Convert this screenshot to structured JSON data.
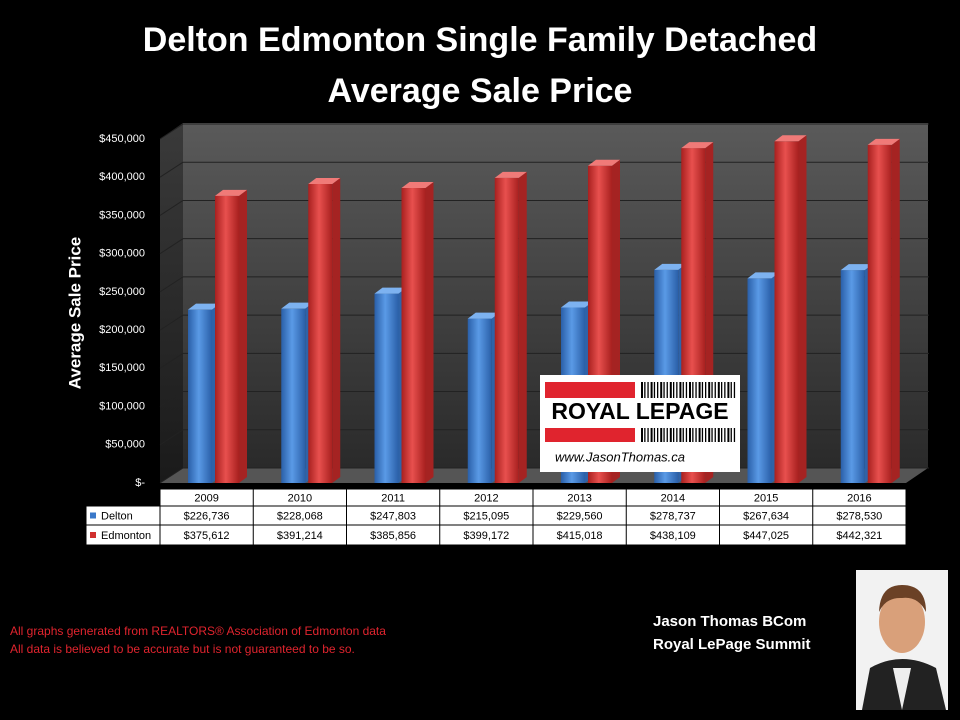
{
  "chart_data": {
    "type": "bar3d",
    "title": [
      "Delton Edmonton Single Family Detached",
      "Average Sale Price"
    ],
    "y_label": "Average Sale Price",
    "categories": [
      "2009",
      "2010",
      "2011",
      "2012",
      "2013",
      "2014",
      "2015",
      "2016"
    ],
    "series": [
      {
        "name": "Delton",
        "color": "#3a78c9",
        "values": [
          226736,
          228068,
          247803,
          215095,
          229560,
          278737,
          267634,
          278530
        ],
        "value_labels": [
          "$226,736",
          "$228,068",
          "$247,803",
          "$215,095",
          "$229,560",
          "$278,737",
          "$267,634",
          "$278,530"
        ]
      },
      {
        "name": "Edmonton",
        "color": "#d0302f",
        "values": [
          375612,
          391214,
          385856,
          399172,
          415018,
          438109,
          447025,
          442321
        ],
        "value_labels": [
          "$375,612",
          "$391,214",
          "$385,856",
          "$399,172",
          "$415,018",
          "$438,109",
          "$447,025",
          "$442,321"
        ]
      }
    ],
    "ylim": [
      0,
      450000
    ],
    "yticks": [
      {
        "value": 0,
        "label": "$-"
      },
      {
        "value": 50000,
        "label": "$50,000"
      },
      {
        "value": 100000,
        "label": "$100,000"
      },
      {
        "value": 150000,
        "label": "$150,000"
      },
      {
        "value": 200000,
        "label": "$200,000"
      },
      {
        "value": 250000,
        "label": "$250,000"
      },
      {
        "value": 300000,
        "label": "$300,000"
      },
      {
        "value": 350000,
        "label": "$350,000"
      },
      {
        "value": 400000,
        "label": "$400,000"
      },
      {
        "value": 450000,
        "label": "$450,000"
      }
    ],
    "grid": true
  },
  "logo": {
    "brand": "ROYAL LEPAGE",
    "url": "www.JasonThomas.ca"
  },
  "notes": [
    "All graphs generated from REALTORS® Association of Edmonton data",
    "All data is believed to be accurate but is not guaranteed to be so."
  ],
  "agent": {
    "name": "Jason Thomas BCom",
    "office": "Royal LePage Summit"
  }
}
